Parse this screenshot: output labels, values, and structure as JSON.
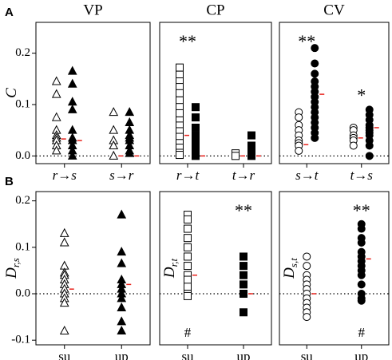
{
  "chart_data": [
    {
      "type": "strip",
      "label": "A",
      "title": "VP",
      "ylabel": "C",
      "ylim": [
        -0.015,
        0.26
      ],
      "yticks": [
        {
          "value": 0,
          "label": "0.0"
        },
        0.1,
        0.2
      ],
      "zero_line": true,
      "italic_categories": true,
      "categories": [
        "r→s",
        "s→r"
      ],
      "series": [
        {
          "category": 0,
          "marker": "triangle",
          "filled": false,
          "values": [
            0.145,
            0.12,
            0.075,
            0.05,
            0.04,
            0.035,
            0.03,
            0.02,
            0.01
          ],
          "median": 0.033
        },
        {
          "category": 0,
          "marker": "triangle",
          "filled": true,
          "values": [
            0.165,
            0.14,
            0.105,
            0.09,
            0.05,
            0.035,
            0.03,
            0.02,
            0.01,
            0.0
          ],
          "median": 0.03
        },
        {
          "category": 1,
          "marker": "triangle",
          "filled": false,
          "values": [
            0.085,
            0.05,
            0.03,
            0.02,
            0.0
          ],
          "median": 0.0
        },
        {
          "category": 1,
          "marker": "triangle",
          "filled": true,
          "values": [
            0.085,
            0.065,
            0.05,
            0.04,
            0.035,
            0.03,
            0.02,
            0.01,
            0.005
          ],
          "median": 0.0
        }
      ]
    },
    {
      "type": "strip",
      "title": "CP",
      "ylim": [
        -0.015,
        0.26
      ],
      "zero_line": true,
      "italic_categories": true,
      "categories": [
        "r→t",
        "t→r"
      ],
      "annotations": [
        {
          "text": "**",
          "category": 0
        }
      ],
      "series": [
        {
          "category": 0,
          "marker": "square",
          "filled": false,
          "values": [
            0.172,
            0.158,
            0.145,
            0.134,
            0.122,
            0.108,
            0.095,
            0.083,
            0.069,
            0.059,
            0.048,
            0.037,
            0.025,
            0.016,
            0.006,
            0.002
          ],
          "median": 0.04
        },
        {
          "category": 0,
          "marker": "square",
          "filled": true,
          "values": [
            0.095,
            0.075,
            0.055,
            0.04,
            0.025,
            0.015,
            0.005,
            0.0
          ],
          "median": 0.0
        },
        {
          "category": 1,
          "marker": "square",
          "filled": false,
          "values": [
            0.005,
            0.0
          ],
          "median": 0.0
        },
        {
          "category": 1,
          "marker": "square",
          "filled": true,
          "values": [
            0.04,
            0.02,
            0.01,
            0.0
          ],
          "median": 0.0
        }
      ]
    },
    {
      "type": "strip",
      "title": "CV",
      "ylim": [
        -0.015,
        0.26
      ],
      "zero_line": true,
      "italic_categories": true,
      "categories": [
        "s→t",
        "t→s"
      ],
      "annotations": [
        {
          "text": "**",
          "category": 0
        },
        {
          "text": "*",
          "category": 1
        }
      ],
      "series": [
        {
          "category": 0,
          "marker": "circle",
          "filled": false,
          "values": [
            0.085,
            0.075,
            0.06,
            0.05,
            0.04,
            0.03,
            0.025,
            0.02,
            0.01
          ],
          "median": 0.022
        },
        {
          "category": 0,
          "marker": "circle",
          "filled": true,
          "values": [
            0.21,
            0.18,
            0.16,
            0.145,
            0.135,
            0.125,
            0.115,
            0.105,
            0.095,
            0.085,
            0.075,
            0.065,
            0.055,
            0.045,
            0.035
          ],
          "median": 0.12
        },
        {
          "category": 1,
          "marker": "circle",
          "filled": false,
          "values": [
            0.055,
            0.05,
            0.04,
            0.035,
            0.03,
            0.02
          ],
          "median": 0.035
        },
        {
          "category": 1,
          "marker": "circle",
          "filled": true,
          "values": [
            0.09,
            0.08,
            0.07,
            0.06,
            0.055,
            0.05,
            0.045,
            0.04,
            0.03,
            0.02,
            0.0
          ],
          "median": 0.055
        }
      ]
    },
    {
      "type": "strip",
      "label": "B",
      "ylabel": "D",
      "ylabel_sub": "r,s",
      "ylim": [
        -0.11,
        0.22
      ],
      "yticks": [
        {
          "value": -0.1,
          "label": "-0.1"
        },
        {
          "value": 0,
          "label": "0.0"
        },
        0.1,
        0.2
      ],
      "zero_line": true,
      "categories": [
        "su",
        "up"
      ],
      "series": [
        {
          "category": 0,
          "marker": "triangle",
          "filled": false,
          "values": [
            0.13,
            0.11,
            0.06,
            0.045,
            0.04,
            0.03,
            0.02,
            0.01,
            0.0,
            -0.01,
            -0.02,
            -0.08
          ],
          "median": 0.01
        },
        {
          "category": 1,
          "marker": "triangle",
          "filled": true,
          "values": [
            0.17,
            0.09,
            0.065,
            0.03,
            0.02,
            0.01,
            0.0,
            -0.01,
            -0.03,
            -0.06,
            -0.08
          ],
          "median": 0.02
        }
      ]
    },
    {
      "type": "strip",
      "ylabel": "D",
      "ylabel_sub": "r,t",
      "ylim": [
        -0.11,
        0.22
      ],
      "zero_line": true,
      "categories": [
        "su",
        "up"
      ],
      "annotations": [
        {
          "text": "**",
          "category": 1
        },
        {
          "text": "#",
          "category": 0
        }
      ],
      "series": [
        {
          "category": 0,
          "marker": "square",
          "filled": false,
          "values": [
            0.17,
            0.16,
            0.14,
            0.12,
            0.1,
            0.08,
            0.06,
            0.04,
            0.03,
            0.015,
            0.0,
            -0.005
          ],
          "median": 0.04
        },
        {
          "category": 1,
          "marker": "square",
          "filled": true,
          "values": [
            0.08,
            0.06,
            0.04,
            0.02,
            0.0,
            -0.04
          ],
          "median": 0.0
        }
      ]
    },
    {
      "type": "strip",
      "ylabel": "D",
      "ylabel_sub": "s,t",
      "ylim": [
        -0.11,
        0.22
      ],
      "zero_line": true,
      "categories": [
        "su",
        "up"
      ],
      "annotations": [
        {
          "text": "**",
          "category": 1
        },
        {
          "text": "#",
          "category": 1
        }
      ],
      "series": [
        {
          "category": 0,
          "marker": "circle",
          "filled": false,
          "values": [
            0.08,
            0.06,
            0.04,
            0.03,
            0.02,
            0.01,
            0.0,
            -0.01,
            -0.02,
            -0.03,
            -0.04,
            -0.05
          ],
          "median": 0.0
        },
        {
          "category": 1,
          "marker": "circle",
          "filled": true,
          "values": [
            0.15,
            0.14,
            0.12,
            0.11,
            0.09,
            0.08,
            0.07,
            0.06,
            0.05,
            0.04,
            0.02,
            0.0,
            -0.01,
            -0.015
          ],
          "median": 0.075
        }
      ]
    }
  ]
}
